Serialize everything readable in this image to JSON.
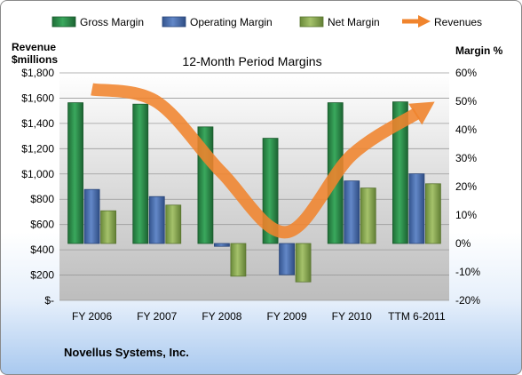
{
  "company_label": "Novellus Systems, Inc.",
  "chart_data": {
    "type": "bar",
    "title": "12-Month Period Margins",
    "left_axis_label": [
      "Revenue",
      "$millions"
    ],
    "right_axis_label": "Margin %",
    "categories": [
      "FY 2006",
      "FY 2007",
      "FY 2008",
      "FY 2009",
      "FY 2010",
      "TTM 6-2011"
    ],
    "left_ticks": [
      "$1,800",
      "$1,600",
      "$1,400",
      "$1,200",
      "$1,000",
      "$800",
      "$600",
      "$400",
      "$200",
      "$-"
    ],
    "right_ticks": [
      "60%",
      "50%",
      "40%",
      "30%",
      "20%",
      "10%",
      "0%",
      "-10%",
      "-20%"
    ],
    "left_ylim": [
      0,
      1800
    ],
    "right_ylim": [
      -20,
      60
    ],
    "grid": true,
    "legend_position": "top",
    "series": [
      {
        "name": "Gross Margin",
        "axis": "right",
        "kind": "bar",
        "color": "#2e8b4a",
        "values": [
          49.5,
          49,
          41,
          37,
          49.5,
          49.8
        ]
      },
      {
        "name": "Operating Margin",
        "axis": "right",
        "kind": "bar",
        "color": "#4a6fb0",
        "values": [
          19,
          16.5,
          -1,
          -11,
          22,
          24.5
        ]
      },
      {
        "name": "Net Margin",
        "axis": "right",
        "kind": "bar",
        "color": "#8aaa4f",
        "values": [
          11.5,
          13.5,
          -11.5,
          -13.5,
          19.5,
          21
        ]
      },
      {
        "name": "Revenues",
        "axis": "left",
        "kind": "line",
        "color": "#f0842d",
        "values": [
          1670,
          1570,
          1010,
          540,
          1150,
          1480
        ]
      }
    ]
  }
}
